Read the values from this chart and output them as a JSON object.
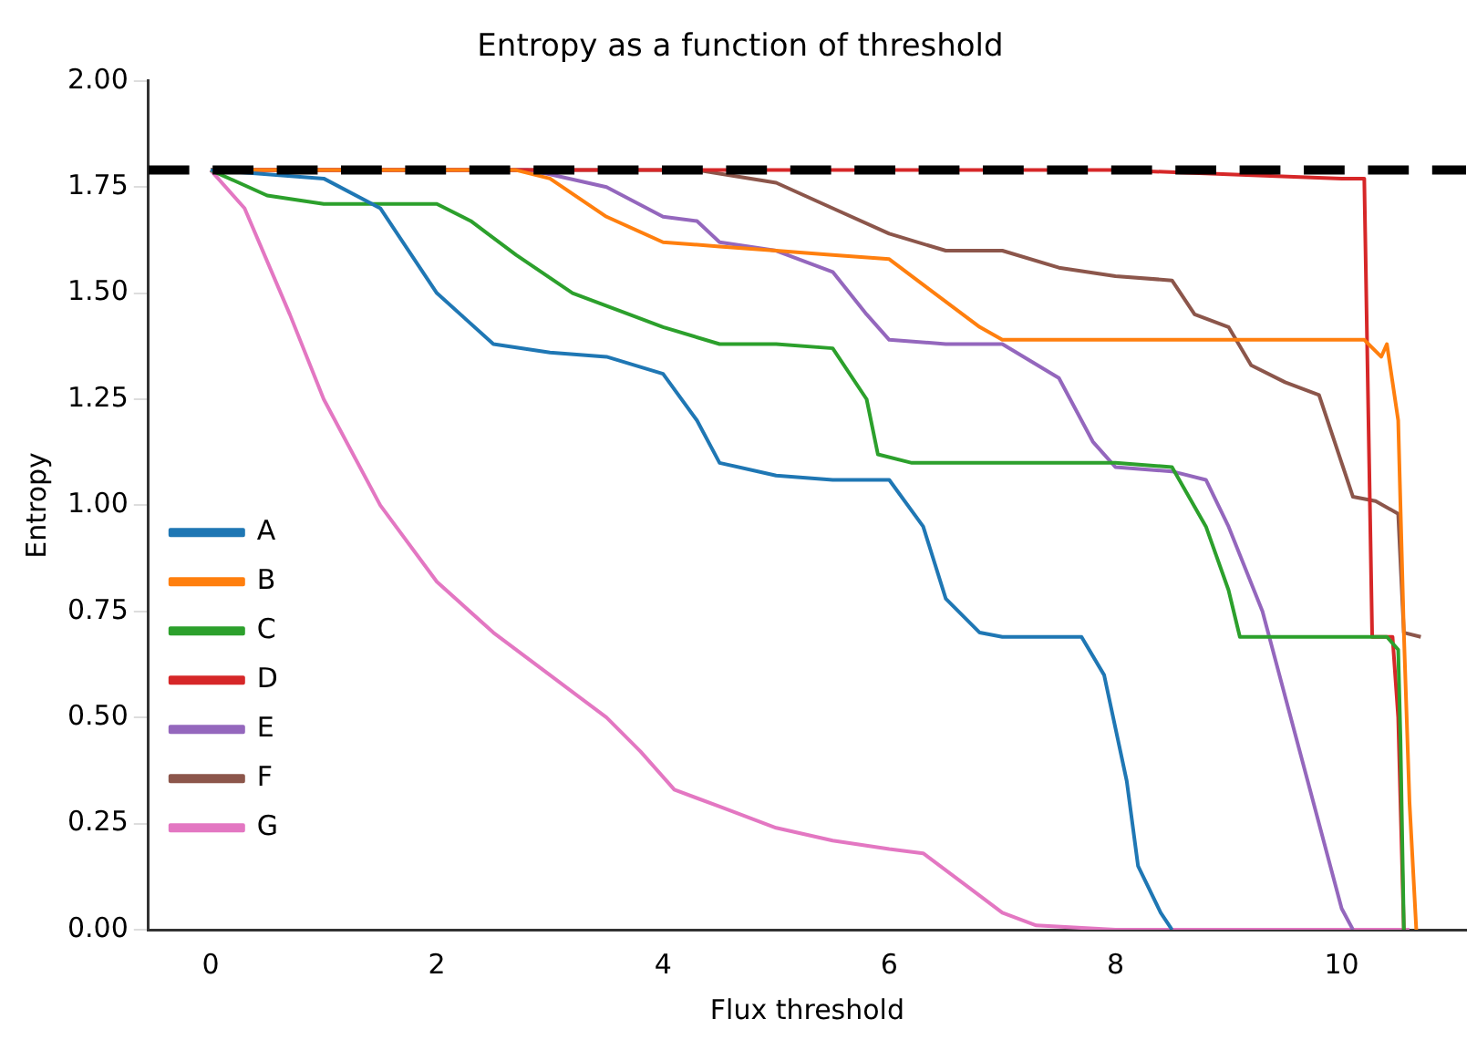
{
  "chart_data": {
    "type": "line",
    "title": "Entropy as a function of threshold",
    "xlabel": "Flux threshold",
    "ylabel": "Entropy",
    "xlim": [
      -0.55,
      11.1
    ],
    "xticks": [
      0,
      2,
      4,
      6,
      8,
      10
    ],
    "ylim": [
      0,
      2
    ],
    "yticks": [
      {
        "value": 0,
        "label": "0.00"
      },
      {
        "value": 0.25,
        "label": "0.25"
      },
      {
        "value": 0.5,
        "label": "0.50"
      },
      {
        "value": 0.75,
        "label": "0.75"
      },
      {
        "value": 1,
        "label": "1.00"
      },
      {
        "value": 1.25,
        "label": "1.25"
      },
      {
        "value": 1.5,
        "label": "1.50"
      },
      {
        "value": 1.75,
        "label": "1.75"
      },
      {
        "value": 2,
        "label": "2.00"
      }
    ],
    "grid": false,
    "legend": "bottom left",
    "marker": "none",
    "line_style": "solid",
    "ref_lines": [
      {
        "axis": "y",
        "value": 1.79,
        "color": "#000000",
        "line_style": "dashed"
      }
    ],
    "series": [
      {
        "name": "A",
        "color": "#1f77b4",
        "x": [
          0,
          1,
          1.5,
          2,
          2.5,
          3,
          3.5,
          4,
          4.3,
          4.5,
          5,
          5.5,
          6,
          6.3,
          6.5,
          6.8,
          7,
          7.7,
          7.9,
          8.1,
          8.2,
          8.4,
          8.5
        ],
        "values": [
          1.79,
          1.77,
          1.7,
          1.5,
          1.38,
          1.36,
          1.35,
          1.31,
          1.2,
          1.1,
          1.07,
          1.06,
          1.06,
          0.95,
          0.78,
          0.7,
          0.69,
          0.69,
          0.6,
          0.35,
          0.15,
          0.04,
          0
        ]
      },
      {
        "name": "B",
        "color": "#ff7f0e",
        "x": [
          0,
          2.7,
          3,
          3.5,
          4,
          4.5,
          5,
          5.5,
          6,
          6.3,
          6.8,
          7,
          8,
          9,
          10,
          10.2,
          10.35,
          10.4,
          10.5,
          10.55,
          10.6,
          10.66
        ],
        "values": [
          1.79,
          1.79,
          1.77,
          1.68,
          1.62,
          1.61,
          1.6,
          1.59,
          1.58,
          1.52,
          1.42,
          1.39,
          1.39,
          1.39,
          1.39,
          1.39,
          1.35,
          1.38,
          1.2,
          0.7,
          0.3,
          0
        ]
      },
      {
        "name": "C",
        "color": "#2ca02c",
        "x": [
          0,
          0.5,
          1,
          2,
          2.3,
          2.7,
          3.2,
          3.7,
          4,
          4.5,
          5,
          5.5,
          5.8,
          5.9,
          6.2,
          7,
          8,
          8.5,
          8.8,
          9,
          9.1,
          10,
          10.4,
          10.5,
          10.52,
          10.55
        ],
        "values": [
          1.79,
          1.73,
          1.71,
          1.71,
          1.67,
          1.59,
          1.5,
          1.45,
          1.42,
          1.38,
          1.38,
          1.37,
          1.25,
          1.12,
          1.1,
          1.1,
          1.1,
          1.09,
          0.95,
          0.8,
          0.69,
          0.69,
          0.69,
          0.66,
          0.45,
          0
        ]
      },
      {
        "name": "D",
        "color": "#d62728",
        "x": [
          0,
          8,
          9,
          10,
          10.2,
          10.25,
          10.27,
          10.45,
          10.5,
          10.55
        ],
        "values": [
          1.79,
          1.79,
          1.78,
          1.77,
          1.77,
          1,
          0.69,
          0.69,
          0.5,
          0
        ]
      },
      {
        "name": "E",
        "color": "#9467bd",
        "x": [
          0,
          2.8,
          3,
          3.5,
          4,
          4.3,
          4.5,
          5,
          5.5,
          5.8,
          6,
          6.5,
          7,
          7.5,
          7.8,
          8,
          8.5,
          8.8,
          9,
          9.3,
          9.5,
          9.7,
          9.9,
          10,
          10.1
        ],
        "values": [
          1.79,
          1.79,
          1.78,
          1.75,
          1.68,
          1.67,
          1.62,
          1.6,
          1.55,
          1.45,
          1.39,
          1.38,
          1.38,
          1.3,
          1.15,
          1.09,
          1.08,
          1.06,
          0.95,
          0.75,
          0.55,
          0.35,
          0.15,
          0.05,
          0
        ]
      },
      {
        "name": "F",
        "color": "#8c564b",
        "x": [
          0,
          4.3,
          5,
          5.5,
          6,
          6.5,
          7,
          7.5,
          8,
          8.5,
          8.7,
          9,
          9.2,
          9.5,
          9.8,
          10,
          10.1,
          10.3,
          10.5,
          10.55,
          10.7
        ],
        "values": [
          1.79,
          1.79,
          1.76,
          1.7,
          1.64,
          1.6,
          1.6,
          1.56,
          1.54,
          1.53,
          1.45,
          1.42,
          1.33,
          1.29,
          1.26,
          1.1,
          1.02,
          1.01,
          0.98,
          0.7,
          0.69
        ]
      },
      {
        "name": "G",
        "color": "#e377c2",
        "x": [
          0,
          0.3,
          0.7,
          1,
          1.5,
          2,
          2.5,
          3,
          3.5,
          3.8,
          4.1,
          4.5,
          5,
          5.5,
          6,
          6.3,
          6.7,
          7,
          7.3,
          8,
          10.6
        ],
        "values": [
          1.79,
          1.7,
          1.45,
          1.25,
          1,
          0.82,
          0.7,
          0.6,
          0.5,
          0.42,
          0.33,
          0.29,
          0.24,
          0.21,
          0.19,
          0.18,
          0.1,
          0.04,
          0.01,
          0,
          0
        ]
      }
    ]
  }
}
